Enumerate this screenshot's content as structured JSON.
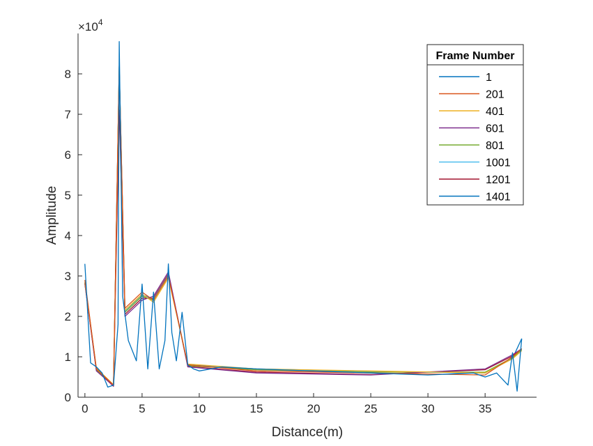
{
  "chart_data": {
    "type": "line",
    "xlabel": "Distance(m)",
    "ylabel": "Amplitude",
    "xlim": [
      -0.6,
      39.5
    ],
    "ylim": [
      0,
      90000
    ],
    "x_ticks": [
      0,
      5,
      10,
      15,
      20,
      25,
      30,
      35
    ],
    "x_tick_labels": [
      "0",
      "5",
      "10",
      "15",
      "20",
      "25",
      "30",
      "35"
    ],
    "y_ticks": [
      0,
      10000,
      20000,
      30000,
      40000,
      50000,
      60000,
      70000,
      80000
    ],
    "y_tick_labels": [
      "0",
      "1",
      "2",
      "3",
      "4",
      "5",
      "6",
      "7",
      "8"
    ],
    "y_exponent_base": "×10",
    "y_exponent_power": "4",
    "grid": false,
    "legend": {
      "title": "Frame Number",
      "placement": "top-right"
    },
    "series": [
      {
        "name": "1",
        "color": "#0072BD",
        "x": [
          0,
          0.5,
          1,
          1.5,
          2,
          2.5,
          2.9,
          3,
          3.3,
          3.8,
          4.5,
          5,
          5.5,
          6,
          6.5,
          7,
          7.3,
          7.6,
          8,
          8.5,
          9,
          9.5,
          10,
          12,
          15,
          20,
          25,
          30,
          34,
          35,
          36,
          37,
          37.4,
          37.8,
          38.2
        ],
        "y": [
          33000,
          8500,
          7500,
          6000,
          2500,
          3000,
          18000,
          88000,
          25000,
          14000,
          9000,
          28000,
          7000,
          26000,
          7000,
          14000,
          33000,
          16000,
          9000,
          21000,
          8000,
          7000,
          6500,
          7500,
          7000,
          6500,
          6000,
          5500,
          6000,
          5000,
          6000,
          3000,
          11000,
          1500,
          14500
        ]
      },
      {
        "name": "201",
        "color": "#D95319",
        "x": [
          0,
          1,
          2.5,
          3,
          3.5,
          5,
          6,
          7.3,
          9,
          15,
          25,
          35,
          37.4,
          38.2
        ],
        "y": [
          29000,
          7000,
          3000,
          82000,
          22000,
          26000,
          24000,
          30000,
          8000,
          6500,
          6000,
          5500,
          10000,
          12000
        ]
      },
      {
        "name": "401",
        "color": "#EDB120",
        "x": [
          0,
          1,
          2.5,
          3,
          3.5,
          5,
          6,
          7.3,
          9,
          15,
          25,
          35,
          37.4,
          38.2
        ],
        "y": [
          28500,
          7200,
          3100,
          81000,
          21500,
          25500,
          23500,
          29500,
          8200,
          7000,
          6500,
          6000,
          9500,
          11500
        ]
      },
      {
        "name": "601",
        "color": "#7E2F8E",
        "x": [
          0,
          1,
          2.5,
          3,
          3.5,
          5,
          6,
          7.3,
          9,
          15,
          25,
          35,
          37.4,
          38.2
        ],
        "y": [
          28000,
          6500,
          2800,
          80000,
          20000,
          24000,
          25000,
          31000,
          7500,
          6000,
          5500,
          7000,
          10500,
          12000
        ]
      },
      {
        "name": "801",
        "color": "#77AC30",
        "x": [
          0,
          1,
          2.5,
          3,
          3.5,
          5,
          6,
          7.3,
          9,
          15,
          25,
          35,
          37.4,
          38.2
        ],
        "y": [
          28200,
          6800,
          2900,
          81500,
          21000,
          25000,
          24000,
          30000,
          7800,
          6800,
          6200,
          6200,
          9800,
          11800
        ]
      },
      {
        "name": "1001",
        "color": "#4DBEEE",
        "x": [
          0,
          1,
          2.5,
          3,
          3.5,
          5,
          6,
          7.3,
          9,
          15,
          25,
          35,
          37.4,
          38.2
        ],
        "y": [
          28400,
          7000,
          3000,
          82000,
          21200,
          25200,
          24200,
          30200,
          7900,
          6900,
          6300,
          6100,
          9700,
          11700
        ]
      },
      {
        "name": "1201",
        "color": "#A2142F",
        "x": [
          0,
          1,
          2.5,
          3,
          3.5,
          5,
          6,
          7.3,
          9,
          15,
          25,
          35,
          37.4,
          38.2
        ],
        "y": [
          28100,
          6600,
          2700,
          71000,
          20500,
          24500,
          24500,
          30500,
          7600,
          6200,
          5600,
          6800,
          10200,
          12000
        ]
      },
      {
        "name": "1401",
        "color": "#0072BD",
        "x": [
          0,
          1,
          2.5,
          3,
          3.5,
          5,
          6,
          7.3,
          9,
          15,
          25,
          35,
          37.4,
          38.2
        ],
        "y": [
          28300,
          6900,
          2900,
          81800,
          21300,
          25300,
          24300,
          30300,
          8000,
          7000,
          6400,
          6000,
          9600,
          14500
        ]
      }
    ]
  }
}
